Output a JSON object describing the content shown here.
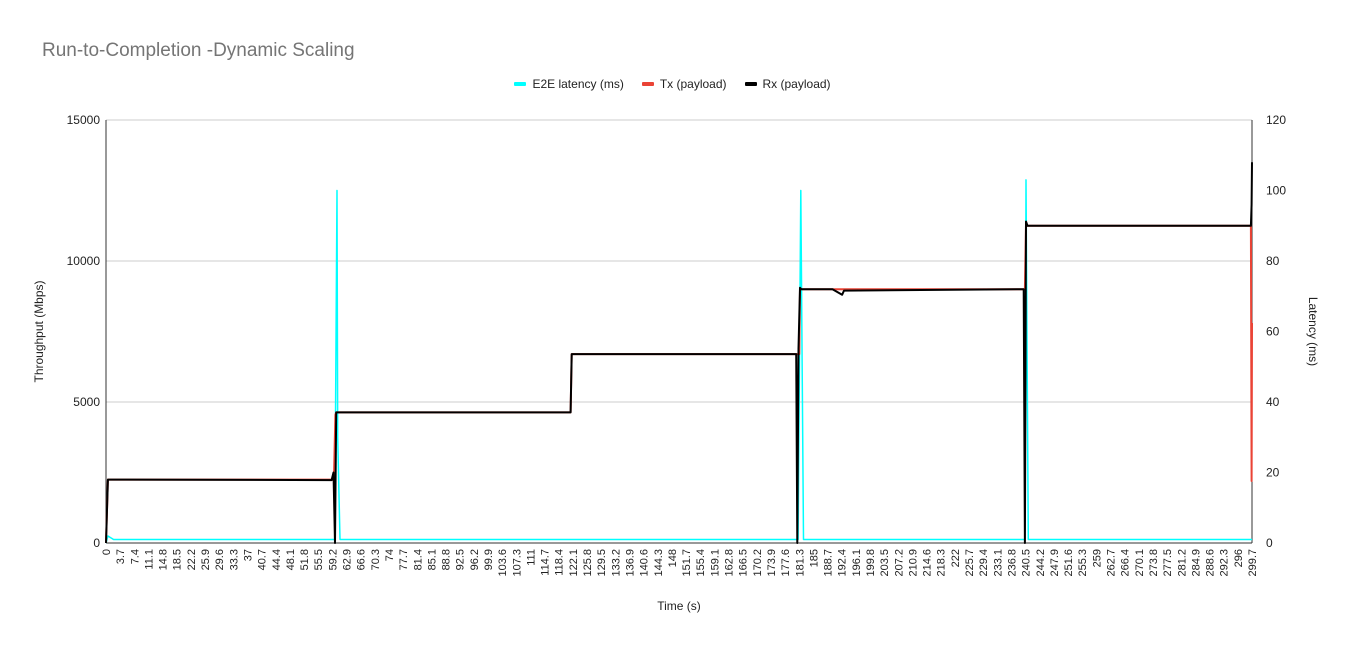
{
  "chart_data": {
    "type": "line",
    "title": "Run-to-Completion -Dynamic Scaling",
    "xlabel": "Time (s)",
    "ylabel_left": "Throughput (Mbps)",
    "ylabel_right": "Latency (ms)",
    "ylim_left": [
      0,
      15000
    ],
    "ylim_right": [
      0,
      120
    ],
    "xlim": [
      0,
      299.7
    ],
    "yticks_left": [
      "0",
      "5000",
      "10000",
      "15000"
    ],
    "yticks_right": [
      "0",
      "20",
      "40",
      "60",
      "80",
      "100",
      "120"
    ],
    "legend_position": "top",
    "grid": true,
    "x_tick_labels": [
      "0",
      "3.7",
      "7.4",
      "11.1",
      "14.8",
      "18.5",
      "22.2",
      "25.9",
      "29.6",
      "33.3",
      "37",
      "40.7",
      "44.4",
      "48.1",
      "51.8",
      "55.5",
      "59.2",
      "62.9",
      "66.6",
      "70.3",
      "74",
      "77.7",
      "81.4",
      "85.1",
      "88.8",
      "92.5",
      "96.2",
      "99.9",
      "103.6",
      "107.3",
      "111",
      "114.7",
      "118.4",
      "122.1",
      "125.8",
      "129.5",
      "133.2",
      "136.9",
      "140.6",
      "144.3",
      "148",
      "151.7",
      "155.4",
      "159.1",
      "162.8",
      "166.5",
      "170.2",
      "173.9",
      "177.6",
      "181.3",
      "185",
      "188.7",
      "192.4",
      "196.1",
      "199.8",
      "203.5",
      "207.2",
      "210.9",
      "214.6",
      "218.3",
      "222",
      "225.7",
      "229.4",
      "233.1",
      "236.8",
      "240.5",
      "244.2",
      "247.9",
      "251.6",
      "255.3",
      "259",
      "262.7",
      "266.4",
      "270.1",
      "273.8",
      "277.5",
      "281.2",
      "284.9",
      "288.6",
      "292.3",
      "296",
      "299.7"
    ],
    "series": [
      {
        "name": "E2E latency (ms)",
        "color": "#00ffff",
        "axis": "right",
        "x": [
          0,
          0.5,
          2,
          10,
          20,
          30,
          40,
          50,
          57,
          59.8,
          60.4,
          60.6,
          61.2,
          70,
          90,
          110,
          130,
          150,
          170,
          179.6,
          181.0,
          181.7,
          182.4,
          190,
          210,
          230,
          239.0,
          240.3,
          240.6,
          241.2,
          250,
          270,
          290,
          299.7
        ],
        "values": [
          0,
          2,
          1,
          1,
          1,
          1,
          1,
          1,
          1,
          1,
          100,
          30,
          1,
          1,
          1,
          1,
          1,
          1,
          1,
          1,
          1,
          100,
          1,
          1,
          1,
          1,
          1,
          1,
          103,
          1,
          1,
          1,
          1,
          1
        ]
      },
      {
        "name": "Tx (payload)",
        "color": "#ea4335",
        "axis": "left",
        "x": [
          0,
          0.5,
          59.6,
          60.0,
          60.2,
          121.5,
          121.8,
          181.3,
          181.5,
          181.8,
          240.3,
          240.6,
          240.9,
          299.4,
          299.6,
          299.7
        ],
        "values": [
          0,
          2250,
          2250,
          4550,
          4630,
          4630,
          6700,
          6700,
          9000,
          9000,
          9000,
          11250,
          11250,
          11250,
          2200,
          7800
        ]
      },
      {
        "name": "Rx (payload)",
        "color": "#000000",
        "axis": "left",
        "x": [
          0,
          0.5,
          59.0,
          59.5,
          59.9,
          60.2,
          121.5,
          121.8,
          180.5,
          180.8,
          181.1,
          181.5,
          181.8,
          190,
          192.5,
          193,
          240.0,
          240.3,
          240.6,
          241.0,
          299.4,
          299.6,
          299.7
        ],
        "values": [
          0,
          2250,
          2230,
          2500,
          0,
          4630,
          4630,
          6700,
          6700,
          0,
          6900,
          9050,
          9000,
          9000,
          8800,
          8950,
          9000,
          0,
          11400,
          11250,
          11250,
          12000,
          13500
        ]
      }
    ]
  }
}
